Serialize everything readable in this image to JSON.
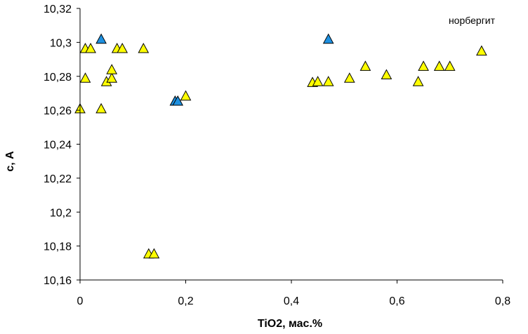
{
  "chart_data": {
    "type": "scatter",
    "title": "",
    "xlabel": "TiO2, мас.%",
    "ylabel": "с, А",
    "annotation": "норбергит",
    "xlim": [
      0,
      0.8
    ],
    "ylim": [
      10.16,
      10.32
    ],
    "x_ticks": [
      0,
      0.2,
      0.4,
      0.6,
      0.8
    ],
    "y_ticks": [
      10.16,
      10.18,
      10.2,
      10.22,
      10.24,
      10.26,
      10.28,
      10.3,
      10.32
    ],
    "x_tick_labels": [
      "0",
      "0,2",
      "0,4",
      "0,6",
      "0,8"
    ],
    "y_tick_labels": [
      "10,16",
      "10,18",
      "10,2",
      "10,22",
      "10,24",
      "10,26",
      "10,28",
      "10,3",
      "10,32"
    ],
    "grid": false,
    "legend": "none",
    "series": [
      {
        "color": "#ffff00",
        "marker": "triangle",
        "points": [
          [
            0.0,
            10.2605
          ],
          [
            0.01,
            10.296
          ],
          [
            0.01,
            10.2785
          ],
          [
            0.02,
            10.296
          ],
          [
            0.04,
            10.2605
          ],
          [
            0.05,
            10.2765
          ],
          [
            0.06,
            10.2785
          ],
          [
            0.06,
            10.2835
          ],
          [
            0.07,
            10.296
          ],
          [
            0.08,
            10.296
          ],
          [
            0.12,
            10.296
          ],
          [
            0.13,
            10.175
          ],
          [
            0.14,
            10.175
          ],
          [
            0.2,
            10.268
          ],
          [
            0.44,
            10.276
          ],
          [
            0.45,
            10.2765
          ],
          [
            0.47,
            10.2765
          ],
          [
            0.51,
            10.2785
          ],
          [
            0.54,
            10.2855
          ],
          [
            0.58,
            10.2805
          ],
          [
            0.64,
            10.2765
          ],
          [
            0.65,
            10.2855
          ],
          [
            0.68,
            10.2855
          ],
          [
            0.7,
            10.2855
          ],
          [
            0.76,
            10.2945
          ]
        ]
      },
      {
        "color": "#1e90e0",
        "marker": "triangle",
        "points": [
          [
            0.04,
            10.3015
          ],
          [
            0.18,
            10.265
          ],
          [
            0.185,
            10.265
          ],
          [
            0.47,
            10.3015
          ]
        ]
      }
    ]
  }
}
